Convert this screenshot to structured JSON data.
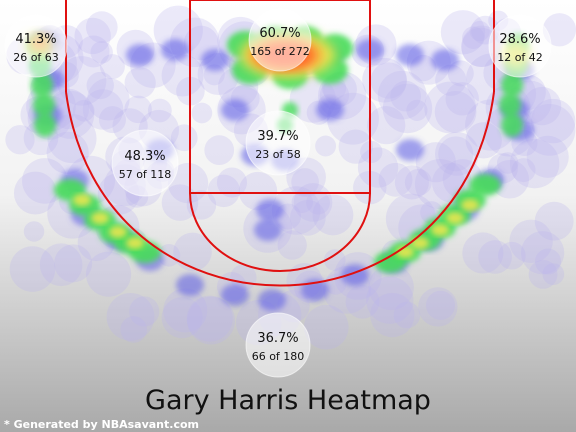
{
  "chart_data": {
    "type": "heatmap",
    "title": "Gary Harris Heatmap",
    "credit": "* Generated by NBAsavant.com",
    "colors": {
      "low": "#5a5ae6",
      "mid": "#46dc5a",
      "high": "#f0e650",
      "peak": "#ff5028",
      "court_lines": "#e01010"
    },
    "zones": [
      {
        "id": "left-corner-three",
        "pct": "41.3%",
        "made_attempted": "26 of 63"
      },
      {
        "id": "restricted-area",
        "pct": "60.7%",
        "made_attempted": "165 of 272"
      },
      {
        "id": "right-corner-three",
        "pct": "28.6%",
        "made_attempted": "12 of 42"
      },
      {
        "id": "left-mid-range",
        "pct": "48.3%",
        "made_attempted": "57 of 118"
      },
      {
        "id": "paint-non-ra",
        "pct": "39.7%",
        "made_attempted": "23 of 58"
      },
      {
        "id": "above-break-three",
        "pct": "36.7%",
        "made_attempted": "66 of 180"
      }
    ]
  }
}
